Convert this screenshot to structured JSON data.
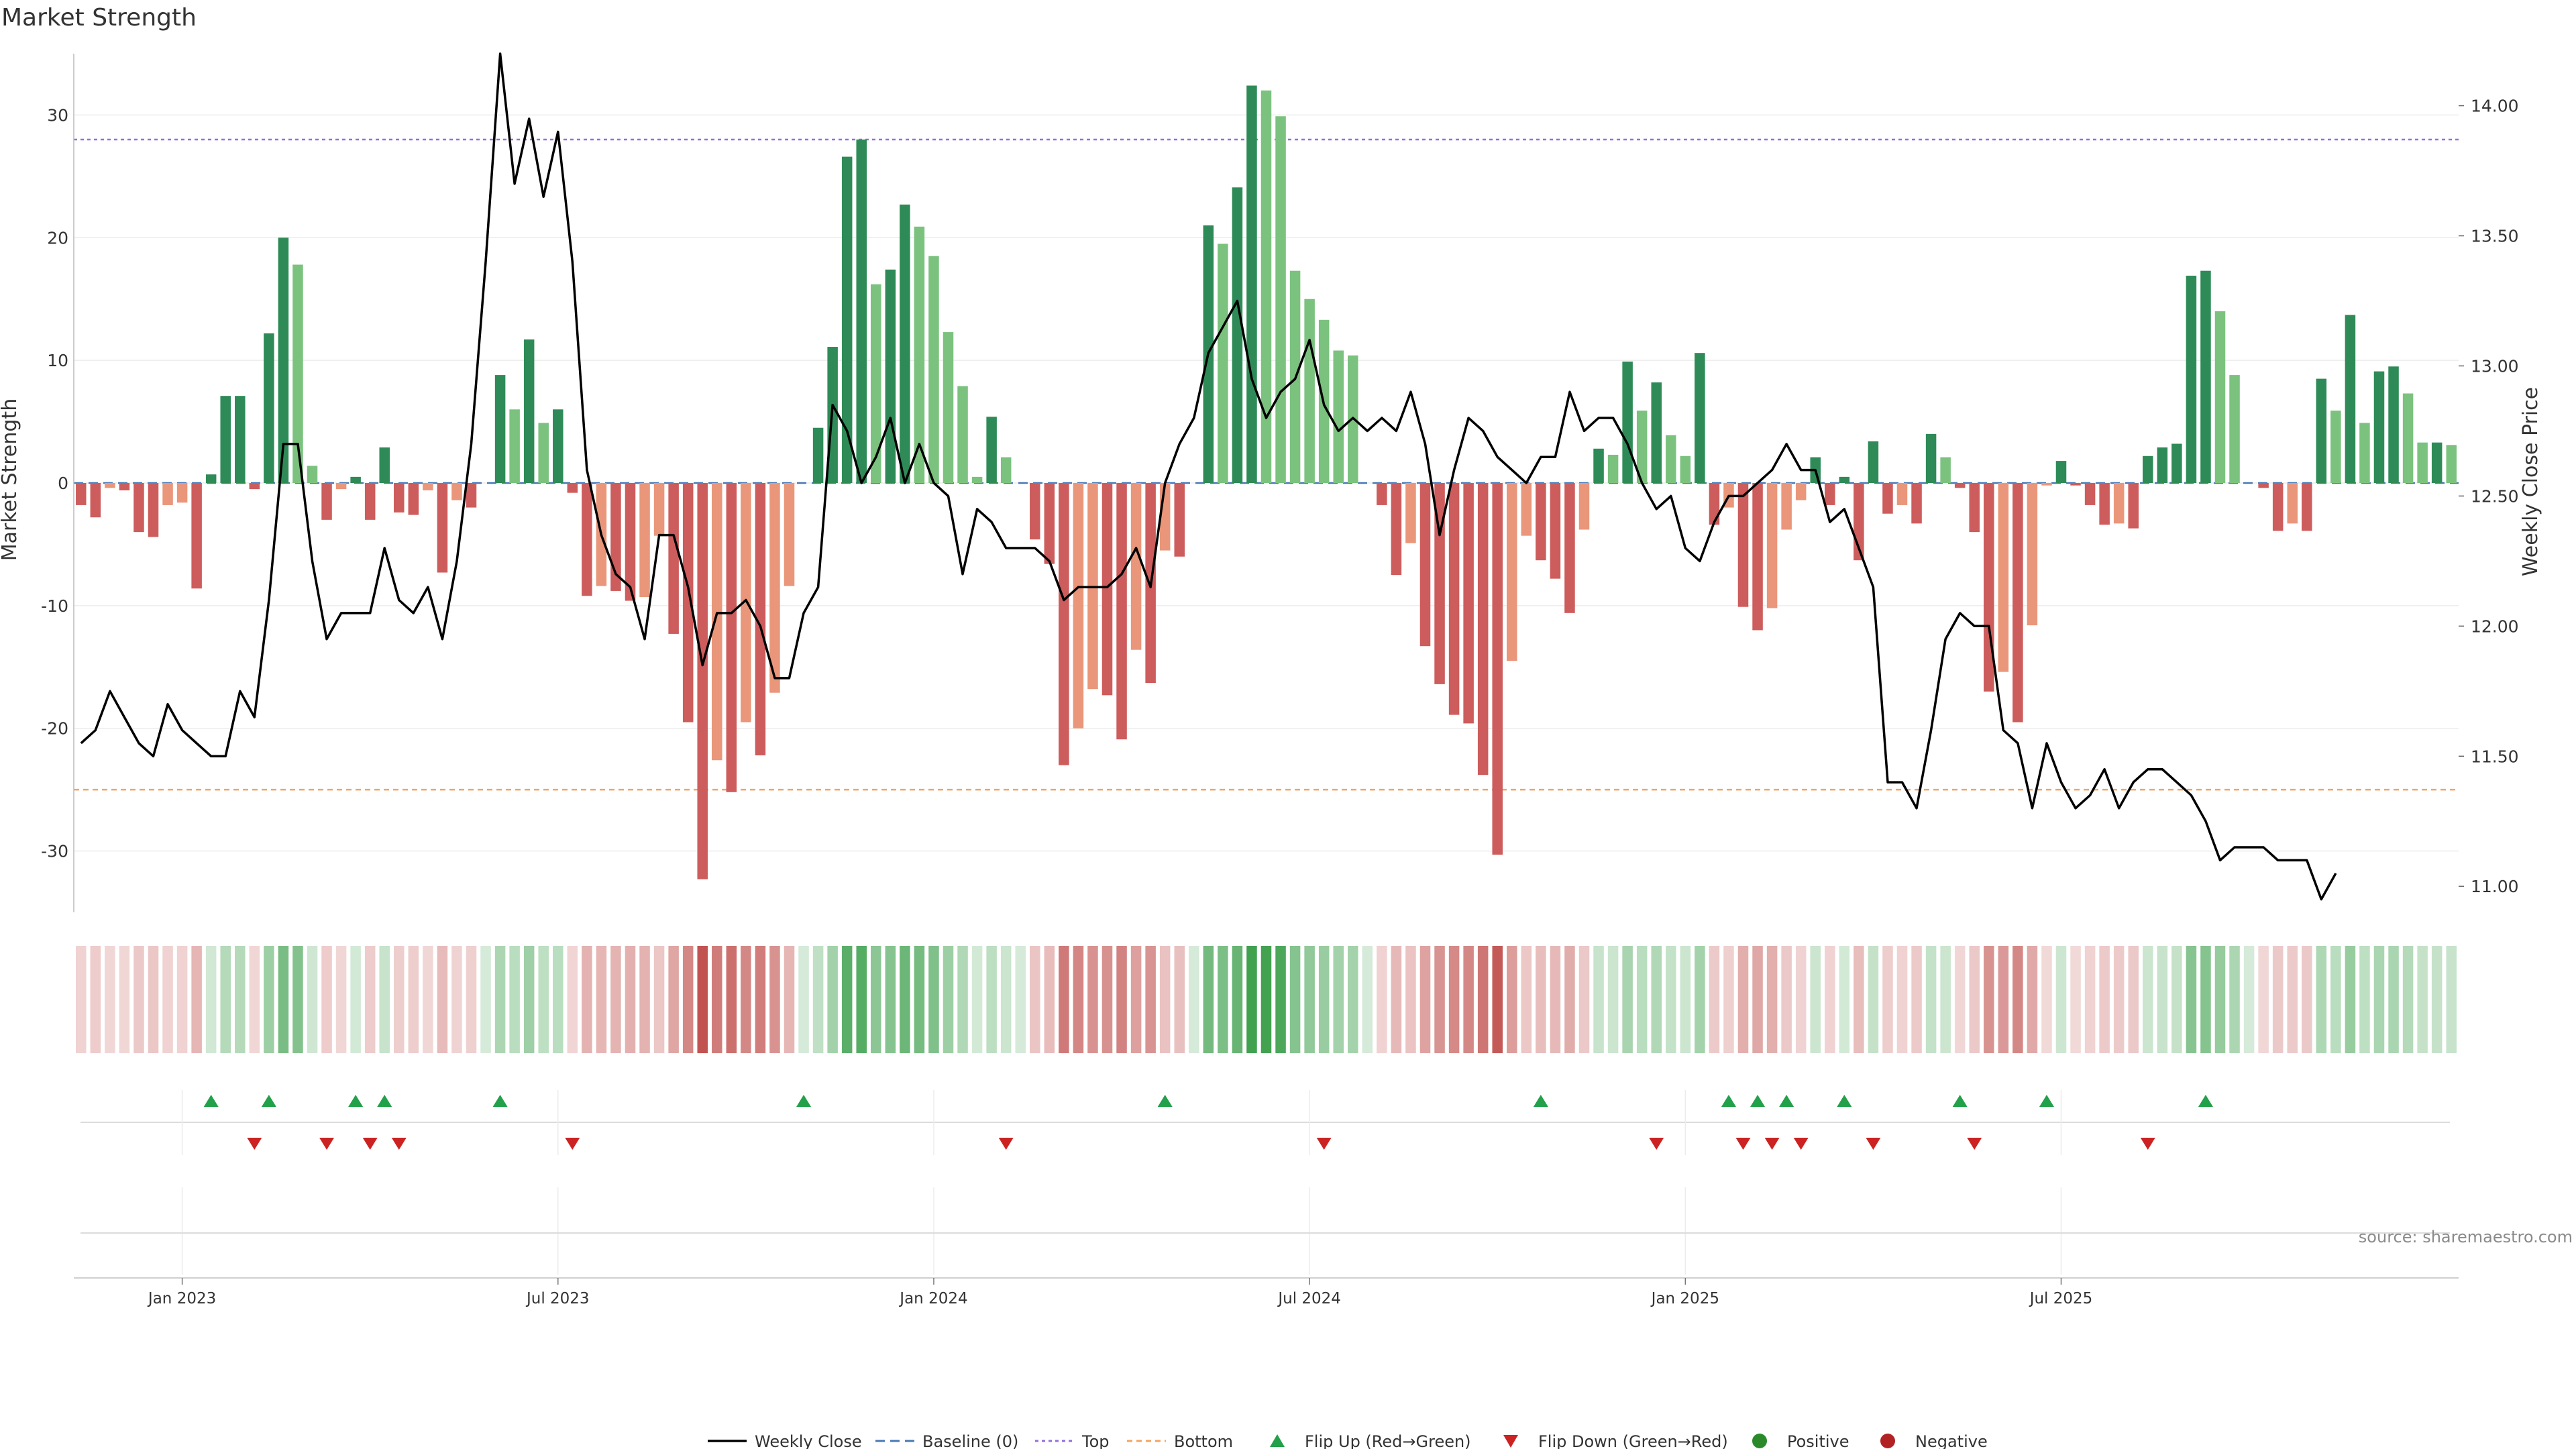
{
  "chart_data": {
    "type": "bar",
    "title": "Market Strength",
    "ylabel": "Market Strength",
    "ylabel_right": "Weekly Close Price",
    "source": "source: sharemaestro.com",
    "ylim": [
      -35,
      35
    ],
    "ylim_right": [
      10.9,
      14.2
    ],
    "yticks": [
      -30,
      -20,
      -10,
      0,
      10,
      20,
      30
    ],
    "yticks_right": [
      "11.00",
      "11.50",
      "12.00",
      "12.50",
      "13.00",
      "13.50",
      "14.00"
    ],
    "yticks_right_values": [
      11.0,
      11.5,
      12.0,
      12.5,
      13.0,
      13.5,
      14.0
    ],
    "x_ticks": [
      "Jan 2023",
      "Jul 2023",
      "Jan 2024",
      "Jul 2024",
      "Jan 2025",
      "Jul 2025"
    ],
    "x_tick_weeks": [
      7,
      33,
      59,
      85,
      111,
      137
    ],
    "top_line": 28,
    "bottom_line": -25,
    "strength": [
      -1.8,
      -2.8,
      -0.4,
      -0.6,
      -4.0,
      -4.4,
      -1.8,
      -1.6,
      -8.6,
      0.7,
      7.1,
      7.1,
      -0.5,
      12.2,
      20.0,
      17.8,
      1.4,
      -3.0,
      -0.5,
      0.5,
      -3.0,
      2.9,
      -2.4,
      -2.6,
      -0.6,
      -7.3,
      -1.4,
      -2.0,
      0,
      8.8,
      6.0,
      11.7,
      4.9,
      6.0,
      -0.8,
      -9.2,
      -8.4,
      -8.8,
      -9.6,
      -9.3,
      -4.3,
      -12.3,
      -19.5,
      -32.3,
      -22.6,
      -25.2,
      -19.5,
      -22.2,
      -17.1,
      -8.4,
      0,
      4.5,
      11.1,
      26.6,
      28.0,
      16.2,
      17.4,
      22.7,
      20.9,
      18.5,
      12.3,
      7.9,
      0.5,
      5.4,
      2.1,
      0,
      -4.6,
      -6.6,
      -23.0,
      -20.0,
      -16.8,
      -17.3,
      -20.9,
      -13.6,
      -16.3,
      -5.5,
      -6.0,
      0,
      21.0,
      19.5,
      24.1,
      32.4,
      32.0,
      29.9,
      17.3,
      15.0,
      13.3,
      10.8,
      10.4,
      0,
      -1.8,
      -7.5,
      -4.9,
      -13.3,
      -16.4,
      -18.9,
      -19.6,
      -23.8,
      -30.3,
      -14.5,
      -4.3,
      -6.3,
      -7.8,
      -10.6,
      -3.8,
      2.8,
      2.3,
      9.9,
      5.9,
      8.2,
      3.9,
      2.2,
      10.6,
      -3.4,
      -2.0,
      -10.1,
      -12.0,
      -10.2,
      -3.8,
      -1.4,
      2.1,
      -1.8,
      0.5,
      -6.3,
      3.4,
      -2.5,
      -1.8,
      -3.3,
      4.0,
      2.1,
      -0.4,
      -4.0,
      -17.0,
      -15.4,
      -19.5,
      -11.6,
      -0.2,
      1.8,
      -0.2,
      -1.8,
      -3.4,
      -3.3,
      -3.7,
      2.2,
      2.9,
      3.2,
      16.9,
      17.3,
      14.0,
      8.8,
      0,
      -0.4,
      -3.9,
      -3.3,
      -3.9,
      8.5,
      5.9,
      13.7,
      4.9,
      9.1,
      9.5,
      7.3,
      3.3,
      3.3,
      3.1
    ],
    "weekly_close": [
      11.55,
      11.6,
      11.75,
      11.65,
      11.55,
      11.5,
      11.7,
      11.6,
      11.55,
      11.5,
      11.5,
      11.75,
      11.65,
      12.1,
      12.7,
      12.7,
      12.25,
      11.95,
      12.05,
      12.05,
      12.05,
      12.3,
      12.1,
      12.05,
      12.15,
      11.95,
      12.25,
      12.7,
      13.4,
      14.2,
      13.7,
      13.95,
      13.65,
      13.9,
      13.4,
      12.6,
      12.35,
      12.2,
      12.15,
      11.95,
      12.35,
      12.35,
      12.15,
      11.85,
      12.05,
      12.05,
      12.1,
      12.0,
      11.8,
      11.8,
      12.05,
      12.15,
      12.85,
      12.75,
      12.55,
      12.65,
      12.8,
      12.55,
      12.7,
      12.55,
      12.5,
      12.2,
      12.45,
      12.4,
      12.3,
      12.3,
      12.3,
      12.25,
      12.1,
      12.15,
      12.15,
      12.15,
      12.2,
      12.3,
      12.15,
      12.55,
      12.7,
      12.8,
      13.05,
      13.15,
      13.25,
      12.95,
      12.8,
      12.9,
      12.95,
      13.1,
      12.85,
      12.75,
      12.8,
      12.75,
      12.8,
      12.75,
      12.9,
      12.7,
      12.35,
      12.6,
      12.8,
      12.75,
      12.65,
      12.6,
      12.55,
      12.65,
      12.65,
      12.9,
      12.75,
      12.8,
      12.8,
      12.7,
      12.55,
      12.45,
      12.5,
      12.3,
      12.25,
      12.4,
      12.5,
      12.5,
      12.55,
      12.6,
      12.7,
      12.6,
      12.6,
      12.4,
      12.45,
      12.3,
      12.15,
      11.4,
      11.4,
      11.3,
      11.6,
      11.95,
      12.05,
      12.0,
      12.0,
      11.6,
      11.55,
      11.3,
      11.55,
      11.4,
      11.3,
      11.35,
      11.45,
      11.3,
      11.4,
      11.45,
      11.45,
      11.4,
      11.35,
      11.25,
      11.1,
      11.15,
      11.15,
      11.15,
      11.1,
      11.1,
      11.1,
      10.95,
      11.05
    ],
    "flip_up_weeks": [
      9,
      13,
      19,
      21,
      29,
      50,
      75,
      101,
      114,
      116,
      118,
      122,
      130,
      136,
      147
    ],
    "flip_down_weeks": [
      12,
      17,
      20,
      22,
      34,
      64,
      86,
      109,
      115,
      117,
      119,
      124,
      131,
      143
    ],
    "legend": [
      "Weekly Close",
      "Baseline (0)",
      "Top",
      "Bottom",
      "Flip Up (Red→Green)",
      "Flip Down (Green→Red)",
      "Positive",
      "Negative"
    ],
    "colors": {
      "pos_strong": "#2e8b57",
      "pos_weak": "#7bc27f",
      "neg_strong": "#cd5c5c",
      "neg_weak": "#e9967a",
      "top": "#9370db",
      "bottom": "#f4a460",
      "baseline": "#4a78b5",
      "line": "#000000",
      "flip_up": "#22a04a",
      "flip_down": "#cc2222",
      "positive_dot": "#2a8a2a",
      "negative_dot": "#b22222",
      "heat_pos": "#3ea04d",
      "heat_neg": "#c0504d"
    }
  }
}
